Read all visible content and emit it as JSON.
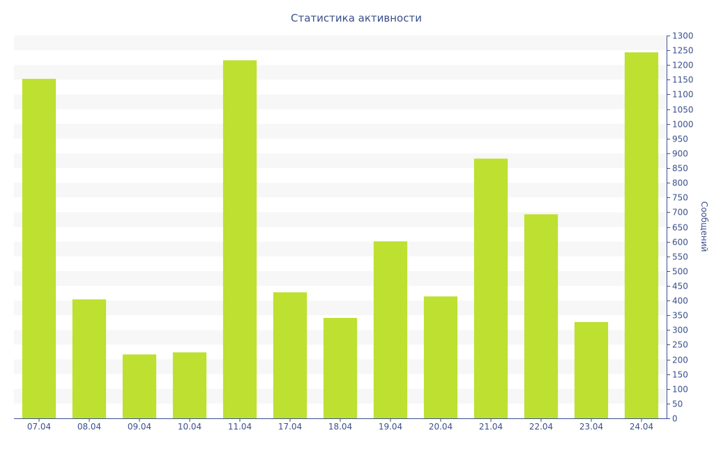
{
  "colors": {
    "bar": "#bde031",
    "axis": "#3a4f8c",
    "text": "#3a4f8c",
    "band": "#f7f7f7"
  },
  "chart_data": {
    "type": "bar",
    "title": "Статистика активности",
    "xlabel": "",
    "ylabel": "Сообщений",
    "ylim": [
      0,
      1300
    ],
    "ytick_step": 50,
    "y_axis_side": "right",
    "grid": "alternating horizontal bands",
    "legend": "none",
    "categories": [
      "07.04",
      "08.04",
      "09.04",
      "10.04",
      "11.04",
      "17.04",
      "18.04",
      "19.04",
      "20.04",
      "21.04",
      "22.04",
      "23.04",
      "24.04"
    ],
    "values": [
      1153,
      404,
      217,
      224,
      1216,
      428,
      341,
      601,
      414,
      882,
      693,
      327,
      1243
    ]
  }
}
